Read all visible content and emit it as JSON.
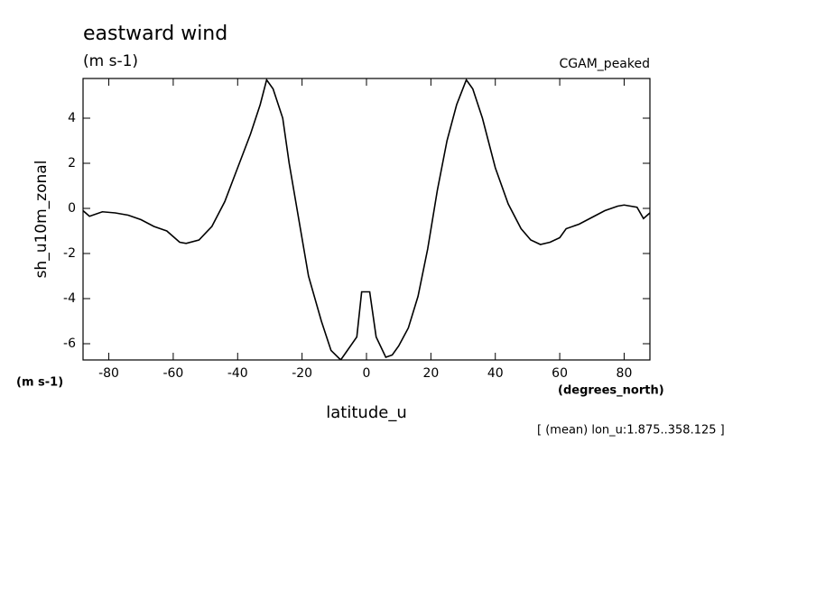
{
  "chart_data": {
    "type": "line",
    "title": "eastward wind",
    "units": "(m s-1)",
    "dataset": "CGAM_peaked",
    "ylabel": "sh_u10m_zonal",
    "yunits": "(m s-1)",
    "xlabel": "latitude_u",
    "xunits": "(degrees_north)",
    "note": "[ (mean) lon_u:1.875..358.125 ]",
    "x": [
      -88,
      -86,
      -82,
      -78,
      -74,
      -70,
      -66,
      -62,
      -58,
      -56,
      -52,
      -48,
      -44,
      -40,
      -36,
      -33,
      -31,
      -29,
      -26,
      -24,
      -21,
      -18,
      -14,
      -11,
      -8,
      -3,
      -1.5,
      1,
      3,
      6,
      8,
      10,
      13,
      16,
      19,
      22,
      25,
      28,
      31,
      33,
      36,
      40,
      44,
      48,
      51,
      54,
      57,
      60,
      62,
      66,
      70,
      74,
      78,
      80,
      84,
      86,
      88
    ],
    "series": [
      {
        "name": "sh_u10m_zonal",
        "color": "#000000",
        "values": [
          -0.1,
          -0.35,
          -0.15,
          -0.2,
          -0.3,
          -0.5,
          -0.8,
          -1.0,
          -1.5,
          -1.55,
          -1.4,
          -0.8,
          0.3,
          1.8,
          3.3,
          4.6,
          5.7,
          5.3,
          4.0,
          2.0,
          -0.5,
          -3.0,
          -5.0,
          -6.3,
          -6.72,
          -5.7,
          -3.7,
          -3.7,
          -5.7,
          -6.6,
          -6.5,
          -6.1,
          -5.3,
          -3.9,
          -1.8,
          0.8,
          3.0,
          4.6,
          5.7,
          5.3,
          4.0,
          1.8,
          0.2,
          -0.9,
          -1.4,
          -1.6,
          -1.5,
          -1.3,
          -0.9,
          -0.7,
          -0.4,
          -0.1,
          0.1,
          0.15,
          0.05,
          -0.45,
          -0.2
        ]
      }
    ],
    "xlim": [
      -88,
      88
    ],
    "xticks": [
      -80,
      -60,
      -40,
      -20,
      0,
      20,
      40,
      60,
      80
    ],
    "ylim": [
      -6.72,
      5.76
    ],
    "yticks": [
      -6,
      -4,
      -2,
      0,
      2,
      4
    ]
  }
}
